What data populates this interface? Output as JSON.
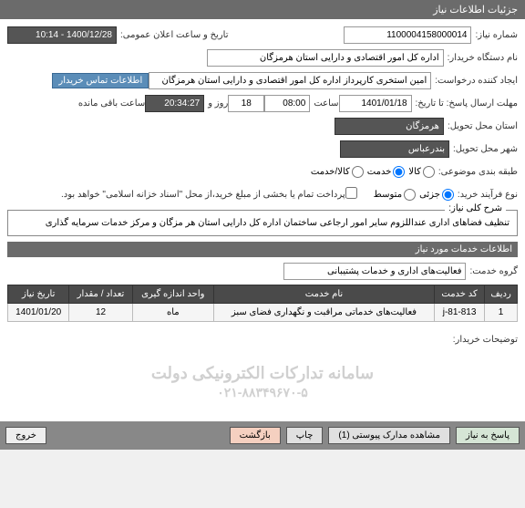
{
  "header": {
    "title": "جزئیات اطلاعات نیاز"
  },
  "form": {
    "need_number_label": "شماره نیاز:",
    "need_number": "1100004158000014",
    "announce_label": "تاریخ و ساعت اعلان عمومی:",
    "announce_value": "1400/12/28 - 10:14",
    "buyer_label": "نام دستگاه خریدار:",
    "buyer_value": "اداره کل امور اقتصادی و دارایی استان هرمزگان",
    "creator_label": "ایجاد کننده درخواست:",
    "creator_value": "امین استخری کارپرداز اداره کل امور اقتصادی و دارایی استان هرمزگان",
    "contact_btn": "اطلاعات تماس خریدار",
    "deadline_label": "مهلت ارسال پاسخ: تا تاریخ:",
    "deadline_date": "1401/01/18",
    "time_label": "ساعت",
    "deadline_time": "08:00",
    "days_label": "روز و",
    "days_value": "18",
    "remaining_time": "20:34:27",
    "remaining_label": "ساعت باقی مانده",
    "province_label": "استان محل تحویل:",
    "province_value": "هرمزگان",
    "city_label": "شهر محل تحویل:",
    "city_value": "بندرعباس",
    "subject_type_label": "طبقه بندی موضوعی:",
    "radio_goods": "کالا",
    "radio_service": "خدمت",
    "radio_both": "کالا/خدمت",
    "process_type_label": "نوع فرآیند خرید:",
    "radio_partial": "جزئی",
    "radio_medium": "متوسط",
    "payment_note": "پرداخت تمام یا بخشی از مبلغ خرید،از محل \"اسناد خزانه اسلامی\" خواهد بود."
  },
  "desc": {
    "legend": "شرح کلی نیاز:",
    "text": "تنظیف فضاهای اداری عنداللزوم سایر امور ارجاعی ساختمان اداره کل دارایی استان هر مزگان و مرکز خدمات سرمایه گذاری"
  },
  "services": {
    "header": "اطلاعات خدمات مورد نیاز",
    "group_label": "گروه خدمت:",
    "group_value": "فعالیت‌های اداری و خدمات پشتیبانی",
    "columns": [
      "ردیف",
      "کد خدمت",
      "نام خدمت",
      "واحد اندازه گیری",
      "تعداد / مقدار",
      "تاریخ نیاز"
    ],
    "rows": [
      [
        "1",
        "j-81-813",
        "فعالیت‌های خدماتی مراقبت و نگهداری فضای سبز",
        "ماه",
        "12",
        "1401/01/20"
      ]
    ]
  },
  "buyer_notes": {
    "label": "توضیحات خریدار:"
  },
  "watermark": {
    "line1": "سامانه تدارکات الکترونیکی دولت",
    "line2": "۰۲۱-۸۸۳۴۹۶۷۰-۵"
  },
  "footer": {
    "respond": "پاسخ به نیاز",
    "attachments": "مشاهده مدارک پیوستی (1)",
    "print": "چاپ",
    "back": "بازگشت",
    "exit": "خروج"
  },
  "colors": {
    "header_bg": "#6b6b6b",
    "field_dark": "#555555",
    "info_btn": "#5b8db8",
    "th_bg": "#4a4a4a",
    "footer_bg": "#888888"
  }
}
